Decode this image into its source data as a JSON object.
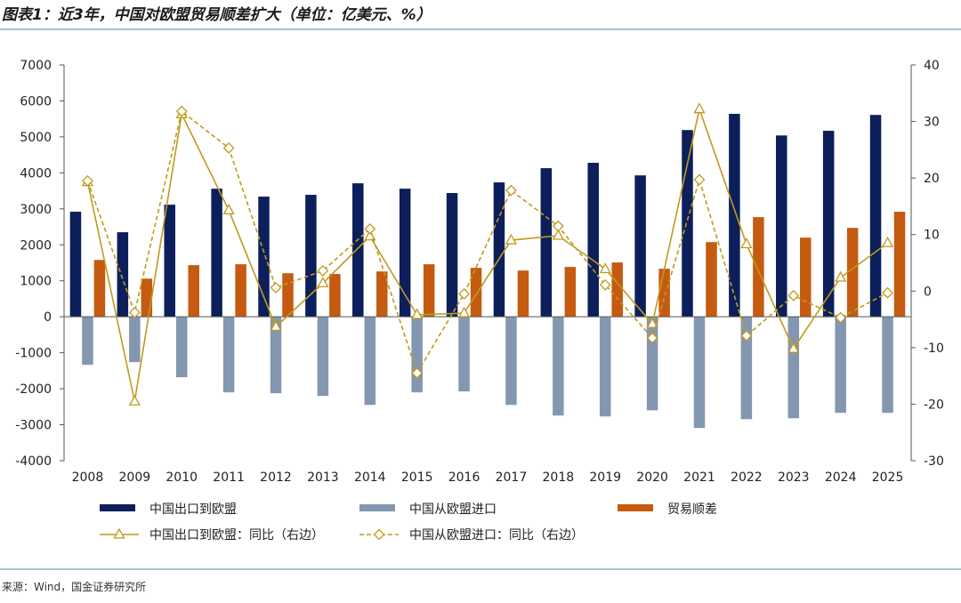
{
  "title": "图表1：近3年，中国对欧盟贸易顺差扩大（单位：亿美元、%）",
  "source": "来源：Wind，国金证券研究所",
  "colors": {
    "export": "#0c1f5b",
    "import": "#8497b0",
    "surplus": "#c55a11",
    "line": "#c09a1c",
    "rule": "#4a8a9a"
  },
  "chart_data": {
    "type": "bar+line",
    "categories": [
      "2008",
      "2009",
      "2010",
      "2011",
      "2012",
      "2013",
      "2014",
      "2015",
      "2016",
      "2017",
      "2018",
      "2019",
      "2020",
      "2021",
      "2022",
      "2023",
      "2024",
      "2025"
    ],
    "left_axis": {
      "ylim": [
        -4000,
        7000
      ],
      "ticks": [
        7000,
        6000,
        5000,
        4000,
        3000,
        2000,
        1000,
        0,
        -1000,
        -2000,
        -3000,
        -4000
      ]
    },
    "right_axis": {
      "ylim": [
        -30,
        40
      ],
      "ticks": [
        40,
        30,
        20,
        10,
        0,
        -10,
        -20,
        -30
      ]
    },
    "grid": false,
    "legend_placement": "bottom",
    "bar_series": [
      {
        "name": "中国出口到欧盟",
        "values": [
          2920,
          2350,
          3115,
          3560,
          3340,
          3390,
          3710,
          3560,
          3440,
          3735,
          4130,
          4280,
          3930,
          5190,
          5640,
          5040,
          5170,
          5610
        ]
      },
      {
        "name": "中国从欧盟进口",
        "values": [
          -1335,
          -1260,
          -1680,
          -2100,
          -2125,
          -2200,
          -2450,
          -2100,
          -2075,
          -2450,
          -2745,
          -2770,
          -2600,
          -3090,
          -2845,
          -2820,
          -2670,
          -2670
        ]
      },
      {
        "name": "贸易顺差",
        "values": [
          1580,
          1060,
          1435,
          1460,
          1210,
          1190,
          1260,
          1460,
          1360,
          1285,
          1385,
          1510,
          1335,
          2075,
          2770,
          2200,
          2470,
          2920
        ]
      }
    ],
    "line_series": [
      {
        "name": "中国出口到欧盟：同比（右边）",
        "style": "solid",
        "marker": "triangle",
        "values": [
          19.3,
          -19.5,
          31.3,
          14.3,
          -6.3,
          1.4,
          9.7,
          -4.2,
          -3.9,
          9.0,
          9.8,
          3.9,
          -5.8,
          32.2,
          8.3,
          -10.2,
          2.4,
          8.5
        ]
      },
      {
        "name": "中国从欧盟进口：同比（右边）",
        "style": "dashed",
        "marker": "diamond",
        "values": [
          19.5,
          -3.8,
          31.8,
          25.3,
          0.6,
          3.6,
          11.0,
          -14.5,
          -0.5,
          17.8,
          11.5,
          1.1,
          -8.3,
          19.7,
          -7.9,
          -0.8,
          -4.7,
          -0.3
        ]
      }
    ]
  }
}
